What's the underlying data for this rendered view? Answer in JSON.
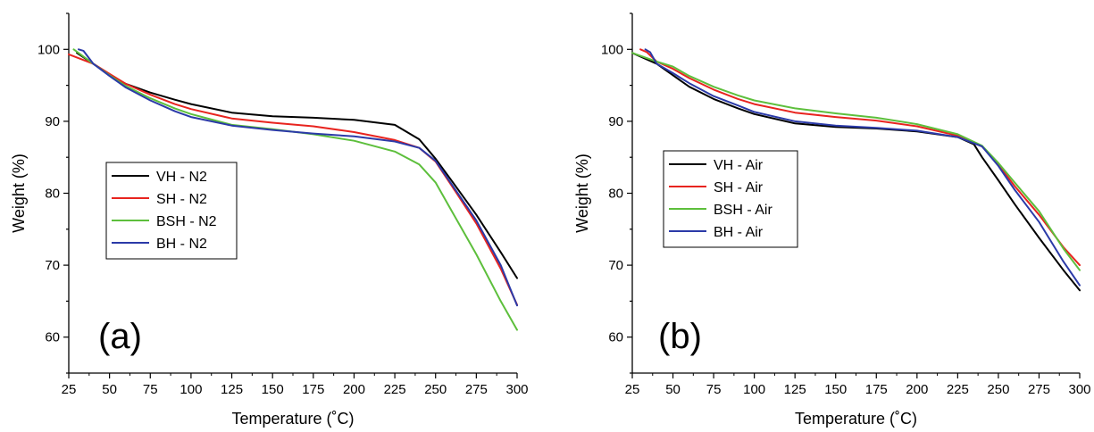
{
  "chart_data": [
    {
      "type": "line",
      "panel_label": "(a)",
      "xlabel": "Temperature (˚C)",
      "ylabel": "Weight (%)",
      "xlim": [
        25,
        300
      ],
      "ylim": [
        55,
        105
      ],
      "xticks": [
        25,
        50,
        75,
        100,
        125,
        150,
        175,
        200,
        225,
        250,
        275,
        300
      ],
      "yticks": [
        60,
        70,
        80,
        90,
        100
      ],
      "legend_position": "middle-left",
      "series": [
        {
          "name": "VH - N2",
          "color": "#000000",
          "x": [
            30,
            40,
            50,
            60,
            75,
            90,
            100,
            125,
            150,
            175,
            200,
            225,
            240,
            250,
            260,
            275,
            290,
            300
          ],
          "y": [
            99.5,
            98.0,
            96.5,
            95.2,
            94.0,
            93.0,
            92.4,
            91.2,
            90.7,
            90.5,
            90.2,
            89.5,
            87.5,
            84.8,
            81.7,
            77.0,
            71.8,
            68.2
          ]
        },
        {
          "name": "SH - N2",
          "color": "#e8241f",
          "x": [
            25,
            40,
            50,
            60,
            75,
            90,
            100,
            125,
            150,
            175,
            200,
            225,
            240,
            250,
            260,
            275,
            290,
            300
          ],
          "y": [
            99.3,
            98.0,
            96.6,
            95.2,
            93.7,
            92.4,
            91.7,
            90.4,
            89.8,
            89.3,
            88.5,
            87.4,
            86.3,
            84.4,
            81.0,
            75.8,
            69.5,
            64.5
          ]
        },
        {
          "name": "BSH - N2",
          "color": "#5dbf3c",
          "x": [
            28,
            40,
            50,
            60,
            75,
            90,
            100,
            125,
            150,
            175,
            200,
            225,
            240,
            250,
            260,
            275,
            290,
            300
          ],
          "y": [
            100.0,
            98.0,
            96.4,
            94.9,
            93.2,
            91.8,
            91.0,
            89.5,
            88.9,
            88.2,
            87.3,
            85.8,
            84.0,
            81.5,
            77.5,
            71.5,
            65.0,
            61.0
          ]
        },
        {
          "name": "BH - N2",
          "color": "#2b3aa8",
          "x": [
            31,
            34,
            40,
            50,
            60,
            75,
            90,
            100,
            125,
            150,
            175,
            200,
            225,
            240,
            250,
            260,
            275,
            290,
            300
          ],
          "y": [
            100.0,
            99.8,
            98.0,
            96.3,
            94.7,
            92.9,
            91.4,
            90.6,
            89.4,
            88.8,
            88.3,
            87.9,
            87.2,
            86.3,
            84.5,
            81.2,
            76.2,
            70.0,
            64.4
          ]
        }
      ]
    },
    {
      "type": "line",
      "panel_label": "(b)",
      "xlabel": "Temperature (˚C)",
      "ylabel": "Weight (%)",
      "xlim": [
        25,
        300
      ],
      "ylim": [
        55,
        105
      ],
      "xticks": [
        25,
        50,
        75,
        100,
        125,
        150,
        175,
        200,
        225,
        250,
        275,
        300
      ],
      "yticks": [
        60,
        70,
        80,
        90,
        100
      ],
      "legend_position": "middle-left",
      "series": [
        {
          "name": "VH - Air",
          "color": "#000000",
          "x": [
            25,
            40,
            50,
            60,
            75,
            90,
            100,
            125,
            150,
            175,
            200,
            225,
            235,
            240,
            250,
            260,
            275,
            290,
            300
          ],
          "y": [
            99.5,
            98.0,
            96.4,
            94.8,
            93.1,
            91.8,
            91.0,
            89.7,
            89.2,
            89.0,
            88.6,
            87.8,
            86.8,
            85.0,
            81.8,
            78.5,
            73.8,
            69.3,
            66.5
          ]
        },
        {
          "name": "SH - Air",
          "color": "#e8241f",
          "x": [
            30,
            34,
            40,
            50,
            60,
            75,
            90,
            100,
            125,
            150,
            175,
            200,
            225,
            240,
            250,
            260,
            275,
            290,
            300
          ],
          "y": [
            100.0,
            99.6,
            98.3,
            97.3,
            96.0,
            94.4,
            93.1,
            92.4,
            91.2,
            90.6,
            90.1,
            89.3,
            88.0,
            86.5,
            84.0,
            81.0,
            77.0,
            72.5,
            70.0
          ]
        },
        {
          "name": "BSH - Air",
          "color": "#5dbf3c",
          "x": [
            25,
            40,
            50,
            60,
            75,
            90,
            100,
            125,
            150,
            175,
            200,
            225,
            240,
            250,
            260,
            275,
            290,
            300
          ],
          "y": [
            99.5,
            98.3,
            97.6,
            96.3,
            94.8,
            93.6,
            92.9,
            91.8,
            91.1,
            90.5,
            89.6,
            88.2,
            86.6,
            84.2,
            81.5,
            77.5,
            72.3,
            69.3
          ]
        },
        {
          "name": "BH - Air",
          "color": "#2b3aa8",
          "x": [
            33,
            36,
            40,
            50,
            60,
            75,
            90,
            100,
            125,
            150,
            175,
            200,
            225,
            240,
            250,
            260,
            275,
            290,
            300
          ],
          "y": [
            100.0,
            99.6,
            98.0,
            96.7,
            95.3,
            93.5,
            92.2,
            91.3,
            90.0,
            89.4,
            89.1,
            88.7,
            87.8,
            86.5,
            83.8,
            80.5,
            76.0,
            70.5,
            67.2
          ]
        }
      ]
    }
  ]
}
